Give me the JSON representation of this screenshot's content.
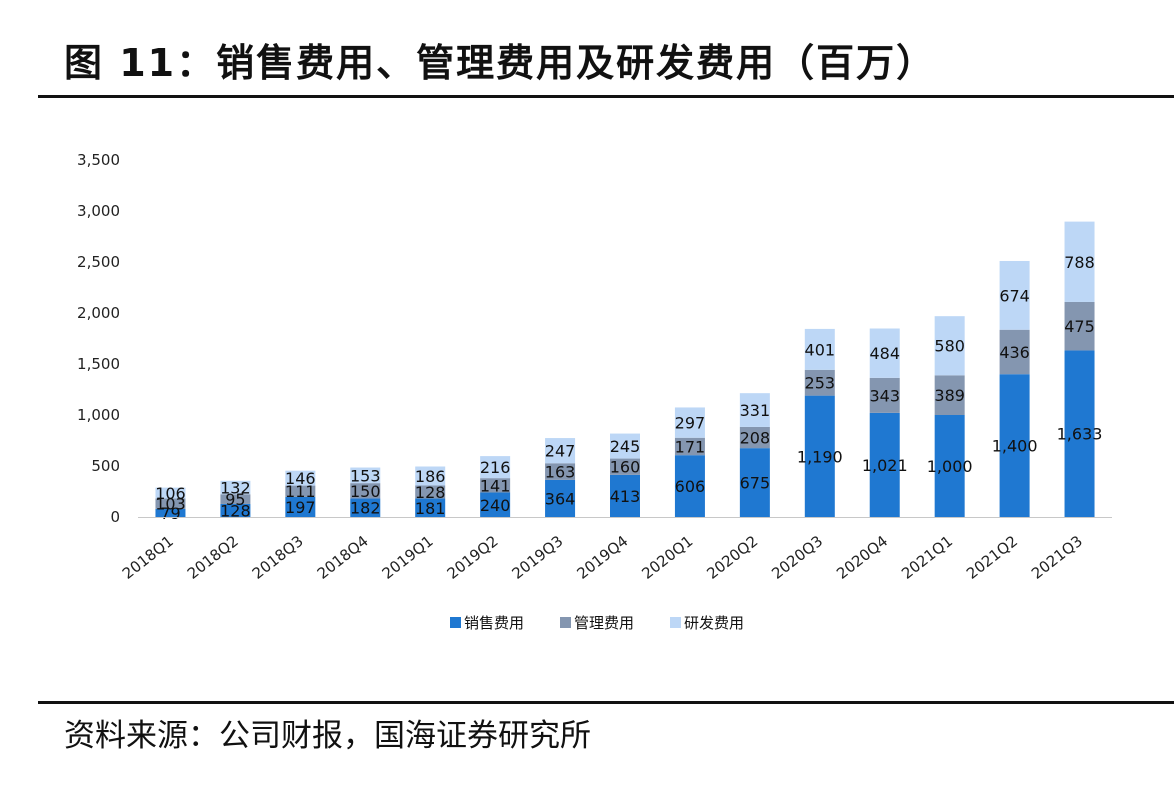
{
  "header": {
    "title": "图 11：销售费用、管理费用及研发费用（百万）"
  },
  "footer": {
    "source": "资料来源：公司财报，国海证券研究所"
  },
  "chart_data": {
    "type": "bar",
    "stacked": true,
    "title": "",
    "xlabel": "",
    "ylabel": "",
    "ylim": [
      0,
      3500
    ],
    "yticks": [
      0,
      500,
      1000,
      1500,
      2000,
      2500,
      3000,
      3500
    ],
    "ytick_labels": [
      "0",
      "500",
      "1,000",
      "1,500",
      "2,000",
      "2,500",
      "3,000",
      "3,500"
    ],
    "grid": false,
    "legend_position": "bottom",
    "categories": [
      "2018Q1",
      "2018Q2",
      "2018Q3",
      "2018Q4",
      "2019Q1",
      "2019Q2",
      "2019Q3",
      "2019Q4",
      "2020Q1",
      "2020Q2",
      "2020Q3",
      "2020Q4",
      "2021Q1",
      "2021Q2",
      "2021Q3"
    ],
    "series": [
      {
        "name": "销售费用",
        "color": "#1f78d1",
        "values": [
          79,
          128,
          197,
          182,
          181,
          240,
          364,
          413,
          606,
          675,
          1190,
          1021,
          1000,
          1400,
          1633
        ],
        "labels": [
          "79",
          "128",
          "197",
          "182",
          "181",
          "240",
          "364",
          "413",
          "606",
          "675",
          "1,190",
          "1,021",
          "1,000",
          "1,400",
          "1,633"
        ]
      },
      {
        "name": "管理费用",
        "color": "#8496b0",
        "values": [
          103,
          95,
          111,
          150,
          128,
          141,
          163,
          160,
          171,
          208,
          253,
          343,
          389,
          436,
          475
        ],
        "labels": [
          "103",
          "95",
          "111",
          "150",
          "128",
          "141",
          "163",
          "160",
          "171",
          "208",
          "253",
          "343",
          "389",
          "436",
          "475"
        ]
      },
      {
        "name": "研发费用",
        "color": "#bdd7f6",
        "values": [
          106,
          132,
          146,
          153,
          186,
          216,
          247,
          245,
          297,
          331,
          401,
          484,
          580,
          674,
          788
        ],
        "labels": [
          "106",
          "132",
          "146",
          "153",
          "186",
          "216",
          "247",
          "245",
          "297",
          "331",
          "401",
          "484",
          "580",
          "674",
          "788"
        ]
      }
    ]
  }
}
